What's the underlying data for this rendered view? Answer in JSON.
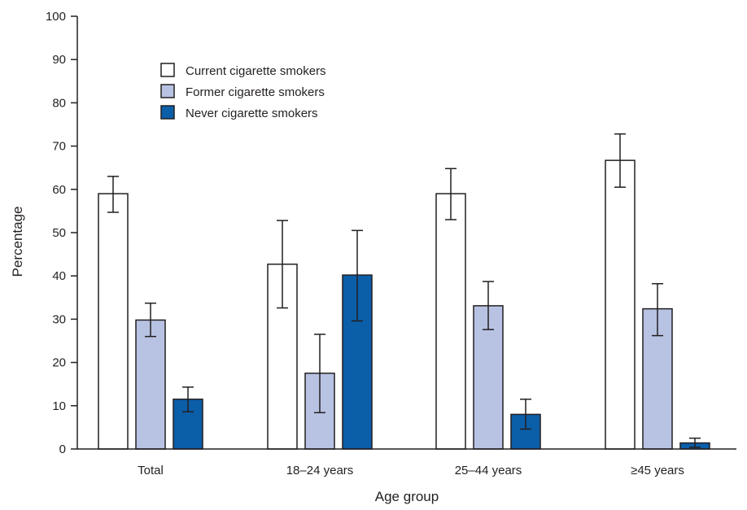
{
  "chart_data": {
    "type": "bar",
    "title": "",
    "xlabel": "Age group",
    "ylabel": "Percentage",
    "ylim": [
      0,
      100
    ],
    "yticks": [
      0,
      10,
      20,
      30,
      40,
      50,
      60,
      70,
      80,
      90,
      100
    ],
    "categories": [
      "Total",
      "18–24 years",
      "25–44 years",
      "≥45 years"
    ],
    "legend_position": "top-left",
    "grid": false,
    "series": [
      {
        "name": "Current cigarette smokers",
        "color": "#ffffff",
        "values": [
          59.0,
          42.7,
          59.0,
          66.7
        ],
        "ci_low": [
          54.7,
          32.6,
          53.0,
          60.5
        ],
        "ci_high": [
          63.0,
          52.8,
          64.8,
          72.8
        ]
      },
      {
        "name": "Former cigarette smokers",
        "color": "#b8c3e3",
        "values": [
          29.8,
          17.5,
          33.1,
          32.4
        ],
        "ci_low": [
          26.0,
          8.4,
          27.6,
          26.2
        ],
        "ci_high": [
          33.7,
          26.5,
          38.7,
          38.2
        ]
      },
      {
        "name": "Never cigarette smokers",
        "color": "#0b5ea8",
        "values": [
          11.5,
          40.2,
          8.0,
          1.4
        ],
        "ci_low": [
          8.6,
          29.6,
          4.6,
          0.4
        ],
        "ci_high": [
          14.3,
          50.5,
          11.5,
          2.5
        ]
      }
    ]
  }
}
